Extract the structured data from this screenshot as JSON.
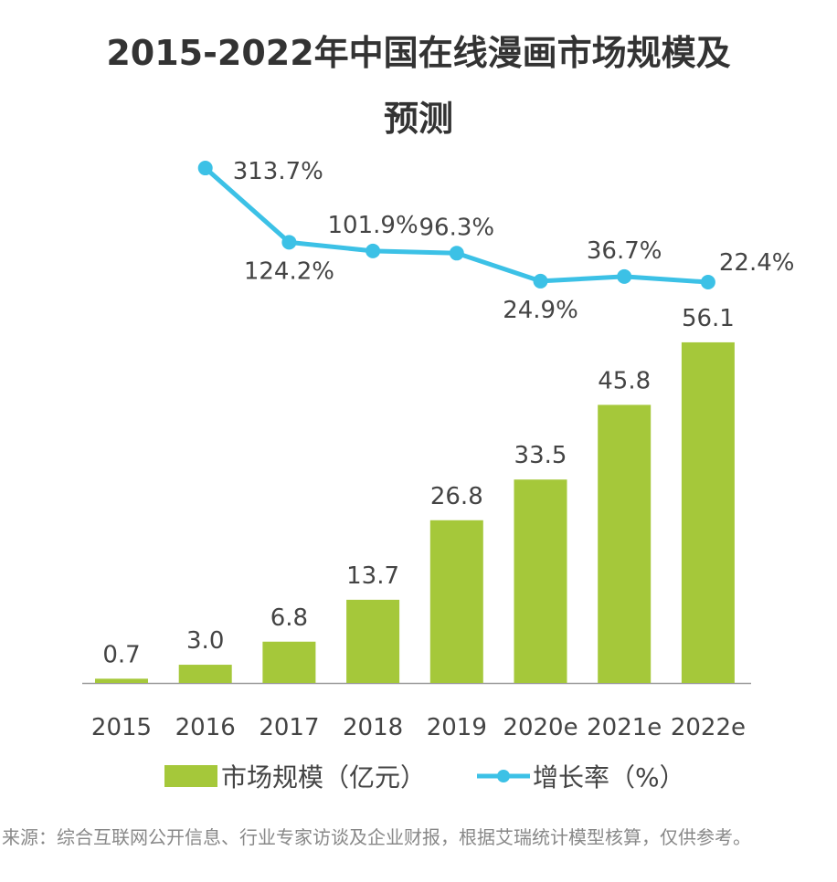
{
  "chart_data": {
    "type": "bar+line",
    "title": "2015-2022年中国在线漫画市场规模及预测",
    "categories": [
      "2015",
      "2016",
      "2017",
      "2018",
      "2019",
      "2020e",
      "2021e",
      "2022e"
    ],
    "series": [
      {
        "name": "市场规模（亿元）",
        "type": "bar",
        "color": "#a5c83a",
        "values": [
          0.7,
          3.0,
          6.8,
          13.7,
          26.8,
          33.5,
          45.8,
          56.1
        ]
      },
      {
        "name": "增长率（%）",
        "type": "line",
        "color": "#3cc1e6",
        "values": [
          null,
          313.7,
          124.2,
          101.9,
          96.3,
          24.9,
          36.7,
          22.4
        ]
      }
    ],
    "legend_placement": "bottom",
    "grid": false
  },
  "title_lines": [
    "2015-2022年中国在线漫画市场规模及",
    "预测"
  ],
  "legend": {
    "bar": "市场规模（亿元）",
    "line": "增长率（%）"
  },
  "source": "来源：综合互联网公开信息、行业专家访谈及企业财报，根据艾瑞统计模型核算，仅供参考。"
}
